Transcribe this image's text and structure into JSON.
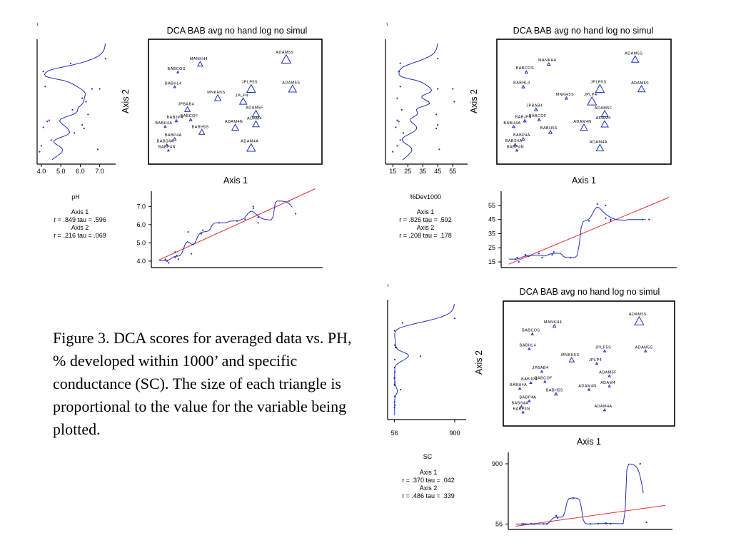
{
  "caption": "Figure 3. DCA scores for averaged data vs. PH, % developed within 1000’ and specific conductance (SC). The size of each triangle is proportional to the value for the variable being plotted.",
  "colors": {
    "points": "#1f2fbf",
    "curve": "#1f2fbf",
    "regression": "#e03030",
    "frame": "#000000",
    "mark": "#e03030"
  },
  "chart_data": [
    {
      "type": "scatter",
      "title": "DCA BAB avg no hand log no simul",
      "xlabel": "Axis 1",
      "ylabel": "Axis 2",
      "variable": "pH",
      "stats": {
        "axis1_label": "Axis 1",
        "axis1": "r =  .849  tau =  .596",
        "axis2_label": "Axis 2",
        "axis2": "r =  .216  tau =  .069"
      },
      "side_axis": {
        "ticks": [
          4.0,
          5.0,
          6.0,
          7.0
        ],
        "tick_labels": [
          "4.0",
          "5.0",
          "6.0",
          "7.0"
        ],
        "range": [
          4.0,
          7.6
        ]
      },
      "bottom_axis": {
        "ticks": [
          4.0,
          5.0,
          6.0,
          7.0
        ],
        "tick_labels": [
          "4.0",
          "5.0",
          "6.0",
          "7.0"
        ],
        "range": [
          3.8,
          7.6
        ]
      },
      "sites": [
        {
          "name": "ADAM5S",
          "x": 0.82,
          "y": 0.87,
          "v": 7.3
        },
        {
          "name": "MANKH4",
          "x": 0.28,
          "y": 0.83,
          "v": 5.5
        },
        {
          "name": "BABCOS",
          "x": 0.14,
          "y": 0.76,
          "v": 4.1
        },
        {
          "name": "BABHL4",
          "x": 0.12,
          "y": 0.63,
          "v": 4.2
        },
        {
          "name": "JPLP5S",
          "x": 0.6,
          "y": 0.61,
          "v": 7.0
        },
        {
          "name": "ADAM5S",
          "x": 0.86,
          "y": 0.61,
          "v": 6.6
        },
        {
          "name": "MNKH5S",
          "x": 0.39,
          "y": 0.53,
          "v": 6.1
        },
        {
          "name": "JPLP4",
          "x": 0.55,
          "y": 0.5,
          "v": 6.3
        },
        {
          "name": "JPBAB4",
          "x": 0.2,
          "y": 0.43,
          "v": 5.6
        },
        {
          "name": "ADAM5F",
          "x": 0.63,
          "y": 0.39,
          "v": 6.4
        },
        {
          "name": "BABJP4",
          "x": 0.13,
          "y": 0.33,
          "v": 4.3
        },
        {
          "name": "BABCOF",
          "x": 0.22,
          "y": 0.34,
          "v": 4.4
        },
        {
          "name": "BABH4A",
          "x": 0.06,
          "y": 0.28,
          "v": 4.1
        },
        {
          "name": "ADAM4",
          "x": 0.63,
          "y": 0.3,
          "v": 6.1
        },
        {
          "name": "ADAM4N",
          "x": 0.5,
          "y": 0.27,
          "v": 6.2
        },
        {
          "name": "BABH5S",
          "x": 0.29,
          "y": 0.23,
          "v": 5.7
        },
        {
          "name": "BABP4A",
          "x": 0.12,
          "y": 0.17,
          "v": 4.5
        },
        {
          "name": "BABS4A",
          "x": 0.07,
          "y": 0.12,
          "v": 4.0
        },
        {
          "name": "ADAM4A",
          "x": 0.6,
          "y": 0.09,
          "v": 6.9
        },
        {
          "name": "BABP4N",
          "x": 0.08,
          "y": 0.07,
          "v": 3.9
        }
      ]
    },
    {
      "type": "scatter",
      "title": "DCA BAB avg no hand log no simul",
      "xlabel": "Axis 1",
      "ylabel": "Axis 2",
      "variable": "%Dev1000",
      "stats": {
        "axis1_label": "Axis 1",
        "axis1": "r =  .826  tau =  .592",
        "axis2_label": "Axis 2",
        "axis2": "r =  .208  tau =  .178"
      },
      "side_axis": {
        "ticks": [
          15,
          25,
          35,
          45,
          55
        ],
        "tick_labels": [
          "15",
          "25",
          "35",
          "45",
          "55"
        ],
        "range": [
          13,
          62
        ]
      },
      "bottom_axis": {
        "ticks": [
          15,
          25,
          35,
          45,
          55
        ],
        "tick_labels": [
          "15",
          "25",
          "35",
          "45",
          "55"
        ],
        "range": [
          13,
          62
        ]
      },
      "sites": [
        {
          "name": "ADAM5S",
          "x": 0.82,
          "y": 0.87,
          "v": 45
        },
        {
          "name": "MANKH4",
          "x": 0.28,
          "y": 0.83,
          "v": 20
        },
        {
          "name": "BABCOS",
          "x": 0.14,
          "y": 0.76,
          "v": 19
        },
        {
          "name": "BABHL4",
          "x": 0.12,
          "y": 0.63,
          "v": 20
        },
        {
          "name": "JPLP5S",
          "x": 0.6,
          "y": 0.61,
          "v": 55
        },
        {
          "name": "ADAM5S",
          "x": 0.86,
          "y": 0.61,
          "v": 45
        },
        {
          "name": "MNKH5S",
          "x": 0.39,
          "y": 0.53,
          "v": 18
        },
        {
          "name": "JPLP4",
          "x": 0.55,
          "y": 0.5,
          "v": 56
        },
        {
          "name": "JPBAB4",
          "x": 0.2,
          "y": 0.43,
          "v": 21
        },
        {
          "name": "ADAM5F",
          "x": 0.63,
          "y": 0.39,
          "v": 44
        },
        {
          "name": "BABJP4",
          "x": 0.13,
          "y": 0.33,
          "v": 19
        },
        {
          "name": "BABCOF",
          "x": 0.22,
          "y": 0.34,
          "v": 18
        },
        {
          "name": "BABH4A",
          "x": 0.06,
          "y": 0.28,
          "v": 17
        },
        {
          "name": "ADAM4",
          "x": 0.63,
          "y": 0.3,
          "v": 45
        },
        {
          "name": "ADAM4N",
          "x": 0.5,
          "y": 0.27,
          "v": 44
        },
        {
          "name": "BABH5S",
          "x": 0.29,
          "y": 0.23,
          "v": 22
        },
        {
          "name": "BABP4A",
          "x": 0.12,
          "y": 0.17,
          "v": 20
        },
        {
          "name": "BABS4A",
          "x": 0.07,
          "y": 0.12,
          "v": 18
        },
        {
          "name": "ADAM4A",
          "x": 0.6,
          "y": 0.09,
          "v": 46
        },
        {
          "name": "BABP4N",
          "x": 0.08,
          "y": 0.07,
          "v": 15
        }
      ]
    },
    {
      "type": "scatter",
      "title": "DCA BAB avg no hand log no simul",
      "xlabel": "Axis 1",
      "ylabel": "Axis 2",
      "variable": "SC",
      "stats": {
        "axis1_label": "Axis 1",
        "axis1": "r =  .370  tau =  .042",
        "axis2_label": "Axis 2",
        "axis2": "r =  .486  tau =  .339"
      },
      "side_axis": {
        "ticks": [
          56,
          900
        ],
        "tick_labels": [
          "56",
          "900"
        ],
        "range": [
          20,
          1000
        ]
      },
      "bottom_axis": {
        "ticks": [
          56,
          900
        ],
        "tick_labels": [
          "56",
          "900"
        ],
        "range": [
          20,
          1000
        ]
      },
      "sites": [
        {
          "name": "ADAM5S",
          "x": 0.82,
          "y": 0.87,
          "v": 900
        },
        {
          "name": "MANKH4",
          "x": 0.28,
          "y": 0.83,
          "v": 170
        },
        {
          "name": "BABCOS",
          "x": 0.14,
          "y": 0.76,
          "v": 56
        },
        {
          "name": "BABHL4",
          "x": 0.12,
          "y": 0.63,
          "v": 60
        },
        {
          "name": "JPLP5S",
          "x": 0.6,
          "y": 0.61,
          "v": 70
        },
        {
          "name": "ADAM5S",
          "x": 0.86,
          "y": 0.61,
          "v": 80
        },
        {
          "name": "MNKH5S",
          "x": 0.39,
          "y": 0.53,
          "v": 420
        },
        {
          "name": "JPLP4",
          "x": 0.55,
          "y": 0.5,
          "v": 60
        },
        {
          "name": "JPBAB4",
          "x": 0.2,
          "y": 0.43,
          "v": 58
        },
        {
          "name": "ADAM5F",
          "x": 0.63,
          "y": 0.39,
          "v": 62
        },
        {
          "name": "BABJP4",
          "x": 0.13,
          "y": 0.33,
          "v": 56
        },
        {
          "name": "BABCOF",
          "x": 0.22,
          "y": 0.34,
          "v": 57
        },
        {
          "name": "BABH4A",
          "x": 0.06,
          "y": 0.28,
          "v": 56
        },
        {
          "name": "ADAM4",
          "x": 0.63,
          "y": 0.3,
          "v": 60
        },
        {
          "name": "ADAM4N",
          "x": 0.5,
          "y": 0.27,
          "v": 58
        },
        {
          "name": "BABH5S",
          "x": 0.29,
          "y": 0.23,
          "v": 140
        },
        {
          "name": "BABP4A",
          "x": 0.12,
          "y": 0.17,
          "v": 58
        },
        {
          "name": "BABS4A",
          "x": 0.07,
          "y": 0.12,
          "v": 56
        },
        {
          "name": "ADAM4A",
          "x": 0.6,
          "y": 0.09,
          "v": 62
        },
        {
          "name": "BABP4N",
          "x": 0.08,
          "y": 0.07,
          "v": 56
        }
      ]
    }
  ]
}
